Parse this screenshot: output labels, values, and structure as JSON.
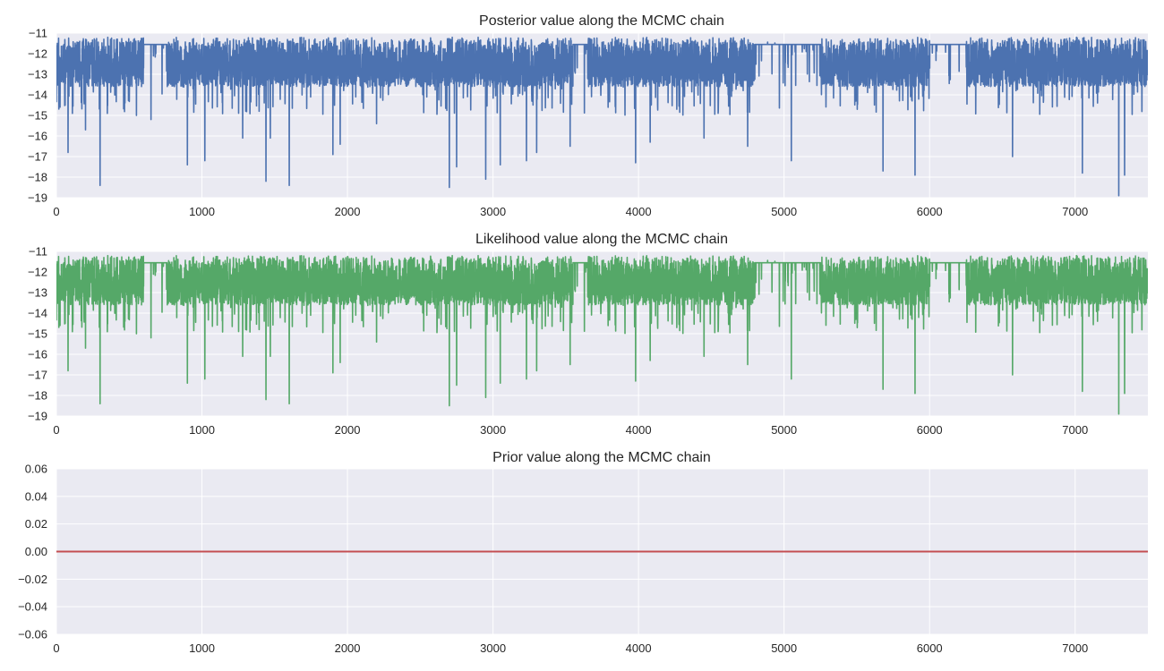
{
  "chart_data": [
    {
      "type": "line",
      "title": "Posterior value along the MCMC chain",
      "xlim": [
        0,
        7500
      ],
      "ylim": [
        -19,
        -11
      ],
      "xticks": [
        0,
        1000,
        2000,
        3000,
        4000,
        5000,
        6000,
        7000
      ],
      "yticks": [
        -11,
        -12,
        -13,
        -14,
        -15,
        -16,
        -17,
        -18,
        -19
      ],
      "grid": true,
      "background": "#eaeaf2",
      "series": [
        {
          "color": "#4c72b0",
          "baseline": -11.55,
          "band": [
            -13.6,
            -11.2
          ],
          "flat_segments": [
            [
              600,
              760
            ],
            [
              3550,
              3650
            ],
            [
              4800,
              5250
            ],
            [
              6000,
              6250
            ]
          ],
          "dips": [
            [
              25,
              -14.6
            ],
            [
              60,
              -14.5
            ],
            [
              80,
              -16.8
            ],
            [
              110,
              -14.9
            ],
            [
              200,
              -15.7
            ],
            [
              300,
              -18.4
            ],
            [
              350,
              -14.9
            ],
            [
              550,
              -15
            ],
            [
              650,
              -15.2
            ],
            [
              900,
              -17.4
            ],
            [
              1020,
              -17.2
            ],
            [
              1280,
              -16.1
            ],
            [
              1440,
              -18.2
            ],
            [
              1470,
              -16.1
            ],
            [
              1600,
              -18.4
            ],
            [
              1900,
              -16.9
            ],
            [
              1950,
              -16.4
            ],
            [
              2200,
              -15.4
            ],
            [
              2700,
              -18.5
            ],
            [
              2750,
              -17.5
            ],
            [
              2950,
              -18.1
            ],
            [
              3050,
              -17.4
            ],
            [
              3230,
              -17.2
            ],
            [
              3300,
              -16.8
            ],
            [
              3530,
              -16.5
            ],
            [
              3980,
              -17.3
            ],
            [
              4080,
              -16.3
            ],
            [
              4450,
              -16.1
            ],
            [
              4750,
              -16.5
            ],
            [
              5050,
              -17.2
            ],
            [
              5680,
              -17.7
            ],
            [
              5900,
              -17.9
            ],
            [
              6570,
              -17
            ],
            [
              7050,
              -17.8
            ],
            [
              7300,
              -18.9
            ],
            [
              7340,
              -17.9
            ]
          ]
        }
      ]
    },
    {
      "type": "line",
      "title": "Likelihood value along the MCMC chain",
      "xlim": [
        0,
        7500
      ],
      "ylim": [
        -19,
        -11
      ],
      "xticks": [
        0,
        1000,
        2000,
        3000,
        4000,
        5000,
        6000,
        7000
      ],
      "yticks": [
        -11,
        -12,
        -13,
        -14,
        -15,
        -16,
        -17,
        -18,
        -19
      ],
      "grid": true,
      "background": "#eaeaf2",
      "series": [
        {
          "color": "#55a868",
          "baseline": -11.55,
          "band": [
            -13.6,
            -11.2
          ],
          "flat_segments": [
            [
              600,
              760
            ],
            [
              3550,
              3650
            ],
            [
              4800,
              5250
            ],
            [
              6000,
              6250
            ]
          ],
          "dips": [
            [
              25,
              -14.6
            ],
            [
              60,
              -14.5
            ],
            [
              80,
              -16.8
            ],
            [
              110,
              -14.9
            ],
            [
              200,
              -15.7
            ],
            [
              300,
              -18.4
            ],
            [
              350,
              -14.9
            ],
            [
              550,
              -15
            ],
            [
              650,
              -15.2
            ],
            [
              900,
              -17.4
            ],
            [
              1020,
              -17.2
            ],
            [
              1280,
              -16.1
            ],
            [
              1440,
              -18.2
            ],
            [
              1470,
              -16.1
            ],
            [
              1600,
              -18.4
            ],
            [
              1900,
              -16.9
            ],
            [
              1950,
              -16.4
            ],
            [
              2200,
              -15.4
            ],
            [
              2700,
              -18.5
            ],
            [
              2750,
              -17.5
            ],
            [
              2950,
              -18.1
            ],
            [
              3050,
              -17.4
            ],
            [
              3230,
              -17.2
            ],
            [
              3300,
              -16.8
            ],
            [
              3530,
              -16.5
            ],
            [
              3980,
              -17.3
            ],
            [
              4080,
              -16.3
            ],
            [
              4450,
              -16.1
            ],
            [
              4750,
              -16.5
            ],
            [
              5050,
              -17.2
            ],
            [
              5680,
              -17.7
            ],
            [
              5900,
              -17.9
            ],
            [
              6570,
              -17
            ],
            [
              7050,
              -17.8
            ],
            [
              7300,
              -18.9
            ],
            [
              7340,
              -17.9
            ]
          ]
        }
      ]
    },
    {
      "type": "line",
      "title": "Prior value along the MCMC chain",
      "xlim": [
        0,
        7500
      ],
      "ylim": [
        -0.06,
        0.06
      ],
      "xticks": [
        0,
        1000,
        2000,
        3000,
        4000,
        5000,
        6000,
        7000
      ],
      "yticks": [
        0.06,
        0.04,
        0.02,
        0.0,
        -0.02,
        -0.04,
        -0.06
      ],
      "ytick_labels": [
        "0.06",
        "0.04",
        "0.02",
        "0.00",
        "−0.02",
        "−0.04",
        "−0.06"
      ],
      "grid": true,
      "background": "#eaeaf2",
      "series": [
        {
          "color": "#c44e52",
          "x": [
            0,
            7500
          ],
          "y": [
            0.0,
            0.0
          ]
        }
      ]
    }
  ]
}
